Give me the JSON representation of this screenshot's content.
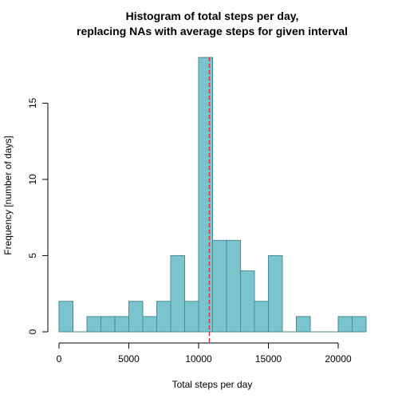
{
  "chart_data": {
    "type": "bar",
    "title": "Histogram of total steps per day,",
    "subtitle": "replacing NAs with average steps for given interval",
    "xlabel": "Total steps per day",
    "ylabel": "Frequency [number of days]",
    "xlim": [
      0,
      22000
    ],
    "ylim": [
      0,
      18
    ],
    "bin_width": 1000,
    "bins": [
      {
        "x0": 0,
        "x1": 1000,
        "count": 2
      },
      {
        "x0": 1000,
        "x1": 2000,
        "count": 0
      },
      {
        "x0": 2000,
        "x1": 3000,
        "count": 1
      },
      {
        "x0": 3000,
        "x1": 4000,
        "count": 1
      },
      {
        "x0": 4000,
        "x1": 5000,
        "count": 1
      },
      {
        "x0": 5000,
        "x1": 6000,
        "count": 2
      },
      {
        "x0": 6000,
        "x1": 7000,
        "count": 1
      },
      {
        "x0": 7000,
        "x1": 8000,
        "count": 2
      },
      {
        "x0": 8000,
        "x1": 9000,
        "count": 5
      },
      {
        "x0": 9000,
        "x1": 10000,
        "count": 2
      },
      {
        "x0": 10000,
        "x1": 11000,
        "count": 18
      },
      {
        "x0": 11000,
        "x1": 12000,
        "count": 6
      },
      {
        "x0": 12000,
        "x1": 13000,
        "count": 6
      },
      {
        "x0": 13000,
        "x1": 14000,
        "count": 4
      },
      {
        "x0": 14000,
        "x1": 15000,
        "count": 2
      },
      {
        "x0": 15000,
        "x1": 16000,
        "count": 5
      },
      {
        "x0": 16000,
        "x1": 17000,
        "count": 0
      },
      {
        "x0": 17000,
        "x1": 18000,
        "count": 1
      },
      {
        "x0": 18000,
        "x1": 19000,
        "count": 0
      },
      {
        "x0": 19000,
        "x1": 20000,
        "count": 0
      },
      {
        "x0": 20000,
        "x1": 21000,
        "count": 1
      },
      {
        "x0": 21000,
        "x1": 22000,
        "count": 1
      }
    ],
    "x_ticks": [
      0,
      5000,
      10000,
      15000,
      20000
    ],
    "x_tick_labels": [
      "0",
      "5000",
      "10000",
      "15000",
      "20000"
    ],
    "y_ticks": [
      0,
      5,
      10,
      15
    ],
    "y_tick_labels": [
      "0",
      "5",
      "10",
      "15"
    ],
    "reference_line": {
      "x": 10766,
      "style": "dashed"
    },
    "colors": {
      "bar_fill": "#7AC5CD",
      "bar_stroke": "#4A8A92",
      "reference_line": "#E8222A",
      "axis": "#000000"
    }
  }
}
